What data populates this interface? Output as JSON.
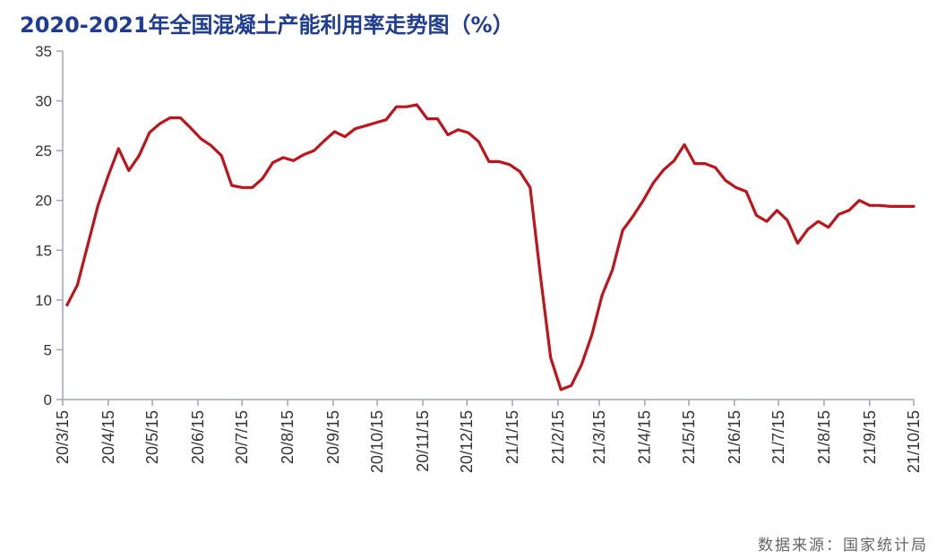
{
  "title": "2020-2021年全国混凝土产能利用率走势图（%）",
  "source": "数据来源：国家统计局",
  "colors": {
    "title": "#1f3c93",
    "line": "#c0141c",
    "axis": "#9fa3b8",
    "text": "#333333",
    "source": "#666666"
  },
  "chart_data": {
    "type": "line",
    "title": "2020-2021年全国混凝土产能利用率走势图（%）",
    "xlabel": "",
    "ylabel": "",
    "ylim": [
      0,
      35
    ],
    "yticks": [
      0,
      5,
      10,
      15,
      20,
      25,
      30,
      35
    ],
    "grid": false,
    "legend": "none",
    "x_ticks": [
      "20/3/15",
      "20/4/15",
      "20/5/15",
      "20/6/15",
      "20/7/15",
      "20/8/15",
      "20/9/15",
      "20/10/15",
      "20/11/15",
      "20/12/15",
      "21/1/15",
      "21/2/15",
      "21/3/15",
      "21/4/15",
      "21/5/15",
      "21/6/15",
      "21/7/15",
      "21/8/15",
      "21/9/15",
      "21/10/15"
    ],
    "series": [
      {
        "color": "#c0141c",
        "points": [
          [
            "2020-03-18",
            9.5
          ],
          [
            "2020-03-25",
            11.5
          ],
          [
            "2020-04-01",
            15.5
          ],
          [
            "2020-04-08",
            19.5
          ],
          [
            "2020-04-15",
            22.5
          ],
          [
            "2020-04-22",
            25.2
          ],
          [
            "2020-04-29",
            23.0
          ],
          [
            "2020-05-06",
            24.5
          ],
          [
            "2020-05-13",
            26.8
          ],
          [
            "2020-05-20",
            27.7
          ],
          [
            "2020-05-27",
            28.3
          ],
          [
            "2020-06-03",
            28.3
          ],
          [
            "2020-06-10",
            27.3
          ],
          [
            "2020-06-17",
            26.2
          ],
          [
            "2020-06-24",
            25.5
          ],
          [
            "2020-07-01",
            24.5
          ],
          [
            "2020-07-08",
            21.5
          ],
          [
            "2020-07-15",
            21.3
          ],
          [
            "2020-07-22",
            21.3
          ],
          [
            "2020-07-29",
            22.2
          ],
          [
            "2020-08-05",
            23.8
          ],
          [
            "2020-08-12",
            24.3
          ],
          [
            "2020-08-19",
            24.0
          ],
          [
            "2020-08-26",
            24.6
          ],
          [
            "2020-09-02",
            25.0
          ],
          [
            "2020-09-09",
            26.0
          ],
          [
            "2020-09-16",
            26.9
          ],
          [
            "2020-09-23",
            26.4
          ],
          [
            "2020-09-30",
            27.2
          ],
          [
            "2020-10-07",
            27.5
          ],
          [
            "2020-10-14",
            27.8
          ],
          [
            "2020-10-21",
            28.1
          ],
          [
            "2020-10-28",
            29.4
          ],
          [
            "2020-11-04",
            29.4
          ],
          [
            "2020-11-11",
            29.6
          ],
          [
            "2020-11-18",
            28.2
          ],
          [
            "2020-11-25",
            28.2
          ],
          [
            "2020-12-02",
            26.6
          ],
          [
            "2020-12-09",
            27.1
          ],
          [
            "2020-12-16",
            26.8
          ],
          [
            "2020-12-23",
            25.9
          ],
          [
            "2020-12-30",
            23.9
          ],
          [
            "2021-01-06",
            23.9
          ],
          [
            "2021-01-13",
            23.6
          ],
          [
            "2021-01-20",
            22.9
          ],
          [
            "2021-01-27",
            21.3
          ],
          [
            "2021-02-03",
            12.5
          ],
          [
            "2021-02-10",
            4.2
          ],
          [
            "2021-02-17",
            1.0
          ],
          [
            "2021-02-24",
            1.4
          ],
          [
            "2021-03-03",
            3.5
          ],
          [
            "2021-03-10",
            6.5
          ],
          [
            "2021-03-17",
            10.5
          ],
          [
            "2021-03-24",
            13.0
          ],
          [
            "2021-03-31",
            17.0
          ],
          [
            "2021-04-07",
            18.4
          ],
          [
            "2021-04-14",
            20.0
          ],
          [
            "2021-04-21",
            21.8
          ],
          [
            "2021-04-28",
            23.1
          ],
          [
            "2021-05-05",
            24.0
          ],
          [
            "2021-05-12",
            25.6
          ],
          [
            "2021-05-19",
            23.7
          ],
          [
            "2021-05-26",
            23.7
          ],
          [
            "2021-06-02",
            23.3
          ],
          [
            "2021-06-09",
            22.0
          ],
          [
            "2021-06-16",
            21.3
          ],
          [
            "2021-06-23",
            20.9
          ],
          [
            "2021-06-30",
            18.5
          ],
          [
            "2021-07-07",
            17.9
          ],
          [
            "2021-07-14",
            19.0
          ],
          [
            "2021-07-21",
            18.0
          ],
          [
            "2021-07-28",
            15.7
          ],
          [
            "2021-08-04",
            17.1
          ],
          [
            "2021-08-11",
            17.9
          ],
          [
            "2021-08-18",
            17.3
          ],
          [
            "2021-08-25",
            18.6
          ],
          [
            "2021-09-01",
            19.0
          ],
          [
            "2021-09-08",
            20.0
          ],
          [
            "2021-09-15",
            19.5
          ],
          [
            "2021-09-22",
            19.5
          ],
          [
            "2021-09-29",
            19.4
          ],
          [
            "2021-10-06",
            19.4
          ],
          [
            "2021-10-13",
            19.4
          ],
          [
            "2021-10-15",
            19.4
          ]
        ]
      }
    ]
  }
}
